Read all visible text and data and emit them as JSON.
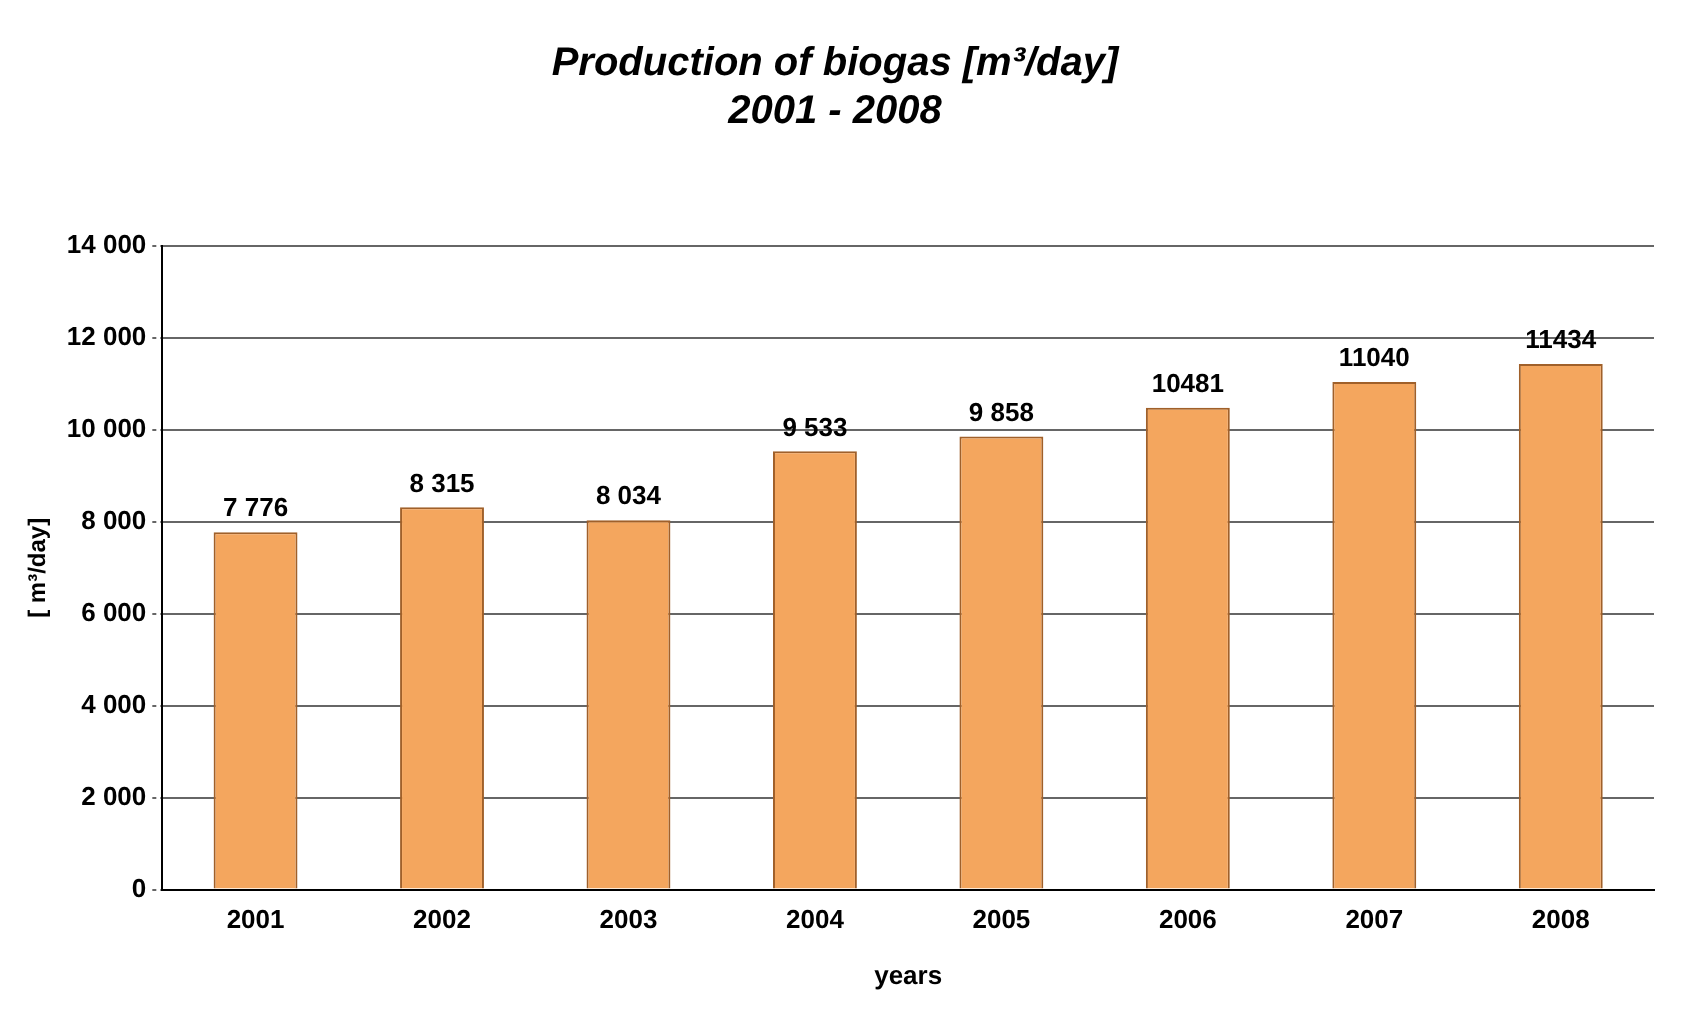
{
  "chart_data": {
    "type": "bar",
    "title": "Production of biogas [m³/day]",
    "subtitle": "2001 - 2008",
    "xlabel": "years",
    "ylabel": "[ m³/day]",
    "categories": [
      "2001",
      "2002",
      "2003",
      "2004",
      "2005",
      "2006",
      "2007",
      "2008"
    ],
    "values": [
      7776,
      8315,
      8034,
      9533,
      9858,
      10481,
      11040,
      11434
    ],
    "value_labels": [
      "7 776",
      "8 315",
      "8 034",
      "9 533",
      "9 858",
      "10481",
      "11040",
      "11434"
    ],
    "color": "#f4a65e",
    "ylim": [
      0,
      14000
    ],
    "yticks": [
      0,
      {
        "value": 2000,
        "label": "2 000"
      },
      {
        "value": 4000,
        "label": "4 000"
      },
      {
        "value": 6000,
        "label": "6 000"
      },
      {
        "value": 8000,
        "label": "8 000"
      },
      {
        "value": 10000,
        "label": "10 000"
      },
      {
        "value": 12000,
        "label": "12 000"
      },
      {
        "value": 14000,
        "label": "14 000"
      }
    ],
    "grid": "y",
    "legend": false
  }
}
